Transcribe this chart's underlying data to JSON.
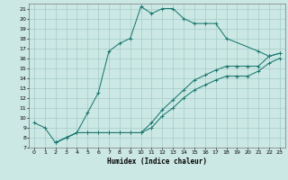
{
  "xlabel": "Humidex (Indice chaleur)",
  "bg_color": "#cce8e4",
  "grid_color": "#aacfcb",
  "line_color": "#1a7870",
  "xlim": [
    -0.5,
    23.5
  ],
  "ylim": [
    7,
    21.5
  ],
  "xticks": [
    0,
    1,
    2,
    3,
    4,
    5,
    6,
    7,
    8,
    9,
    10,
    11,
    12,
    13,
    14,
    15,
    16,
    17,
    18,
    19,
    20,
    21,
    22,
    23
  ],
  "yticks": [
    7,
    8,
    9,
    10,
    11,
    12,
    13,
    14,
    15,
    16,
    17,
    18,
    19,
    20,
    21
  ],
  "line1_x": [
    0,
    1,
    2,
    3,
    4,
    5,
    6,
    7,
    8,
    9,
    10,
    11,
    12,
    13,
    14,
    15,
    16,
    17,
    18,
    21,
    22,
    23
  ],
  "line1_y": [
    9.5,
    9.0,
    7.5,
    8.0,
    8.5,
    10.5,
    12.5,
    16.7,
    17.5,
    18.0,
    21.2,
    20.5,
    21.0,
    21.0,
    20.0,
    19.5,
    19.5,
    19.5,
    18.0,
    16.7,
    16.2,
    16.5
  ],
  "line2_x": [
    2,
    3,
    4,
    5,
    6,
    7,
    8,
    9,
    10,
    11,
    12,
    13,
    14,
    15,
    16,
    17,
    18,
    19,
    20,
    21,
    22,
    23
  ],
  "line2_y": [
    7.5,
    8.0,
    8.5,
    8.5,
    8.5,
    8.5,
    8.5,
    8.5,
    8.5,
    9.5,
    10.8,
    11.8,
    12.8,
    13.8,
    14.3,
    14.8,
    15.2,
    15.2,
    15.2,
    15.2,
    16.2,
    16.5
  ],
  "line3_x": [
    2,
    3,
    4,
    5,
    6,
    7,
    8,
    9,
    10,
    11,
    12,
    13,
    14,
    15,
    16,
    17,
    18,
    19,
    20,
    21,
    22,
    23
  ],
  "line3_y": [
    7.5,
    8.0,
    8.5,
    8.5,
    8.5,
    8.5,
    8.5,
    8.5,
    8.5,
    9.0,
    10.2,
    11.0,
    12.0,
    12.8,
    13.3,
    13.8,
    14.2,
    14.2,
    14.2,
    14.7,
    15.5,
    16.0
  ]
}
